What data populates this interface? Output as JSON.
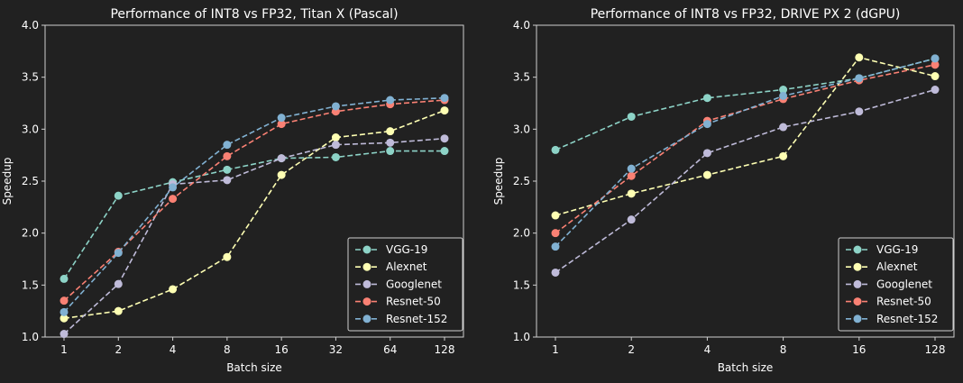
{
  "chart_data": [
    {
      "type": "line",
      "title": "Performance of INT8 vs FP32, Titan X (Pascal)",
      "xlabel": "Batch size",
      "ylabel": "Speedup",
      "categories": [
        "1",
        "2",
        "4",
        "8",
        "16",
        "32",
        "64",
        "128"
      ],
      "ylim": [
        1.0,
        4.0
      ],
      "yticks": [
        "1.0",
        "1.5",
        "2.0",
        "2.5",
        "3.0",
        "3.5",
        "4.0"
      ],
      "grid": false,
      "legend_position": "lower-right",
      "series": [
        {
          "name": "VGG-19",
          "color": "#8dd3c7",
          "values": [
            1.56,
            2.36,
            2.49,
            2.61,
            2.72,
            2.73,
            2.79,
            2.79
          ]
        },
        {
          "name": "Alexnet",
          "color": "#feffb3",
          "values": [
            1.18,
            1.25,
            1.46,
            1.77,
            2.56,
            2.92,
            2.98,
            3.18
          ]
        },
        {
          "name": "Googlenet",
          "color": "#bfbbd9",
          "values": [
            1.03,
            1.51,
            2.47,
            2.51,
            2.72,
            2.85,
            2.87,
            2.91
          ]
        },
        {
          "name": "Resnet-50",
          "color": "#fa8174",
          "values": [
            1.35,
            1.82,
            2.33,
            2.74,
            3.05,
            3.17,
            3.24,
            3.28
          ]
        },
        {
          "name": "Resnet-152",
          "color": "#81b1d2",
          "values": [
            1.24,
            1.81,
            2.44,
            2.85,
            3.11,
            3.22,
            3.28,
            3.3
          ]
        }
      ]
    },
    {
      "type": "line",
      "title": "Performance of INT8 vs FP32, DRIVE PX 2 (dGPU)",
      "xlabel": "Batch size",
      "ylabel": "Speedup",
      "categories": [
        "1",
        "2",
        "4",
        "8",
        "16",
        "128"
      ],
      "ylim": [
        1.0,
        4.0
      ],
      "yticks": [
        "1.0",
        "1.5",
        "2.0",
        "2.5",
        "3.0",
        "3.5",
        "4.0"
      ],
      "grid": false,
      "legend_position": "lower-right",
      "series": [
        {
          "name": "VGG-19",
          "color": "#8dd3c7",
          "values": [
            2.8,
            3.12,
            3.3,
            3.38,
            3.49,
            3.68
          ]
        },
        {
          "name": "Alexnet",
          "color": "#feffb3",
          "values": [
            2.17,
            2.38,
            2.56,
            2.74,
            3.69,
            3.51
          ]
        },
        {
          "name": "Googlenet",
          "color": "#bfbbd9",
          "values": [
            1.62,
            2.13,
            2.77,
            3.02,
            3.17,
            3.38
          ]
        },
        {
          "name": "Resnet-50",
          "color": "#fa8174",
          "values": [
            2.0,
            2.55,
            3.08,
            3.29,
            3.47,
            3.62
          ]
        },
        {
          "name": "Resnet-152",
          "color": "#81b1d2",
          "values": [
            1.87,
            2.62,
            3.05,
            3.32,
            3.49,
            3.68
          ]
        }
      ]
    }
  ]
}
